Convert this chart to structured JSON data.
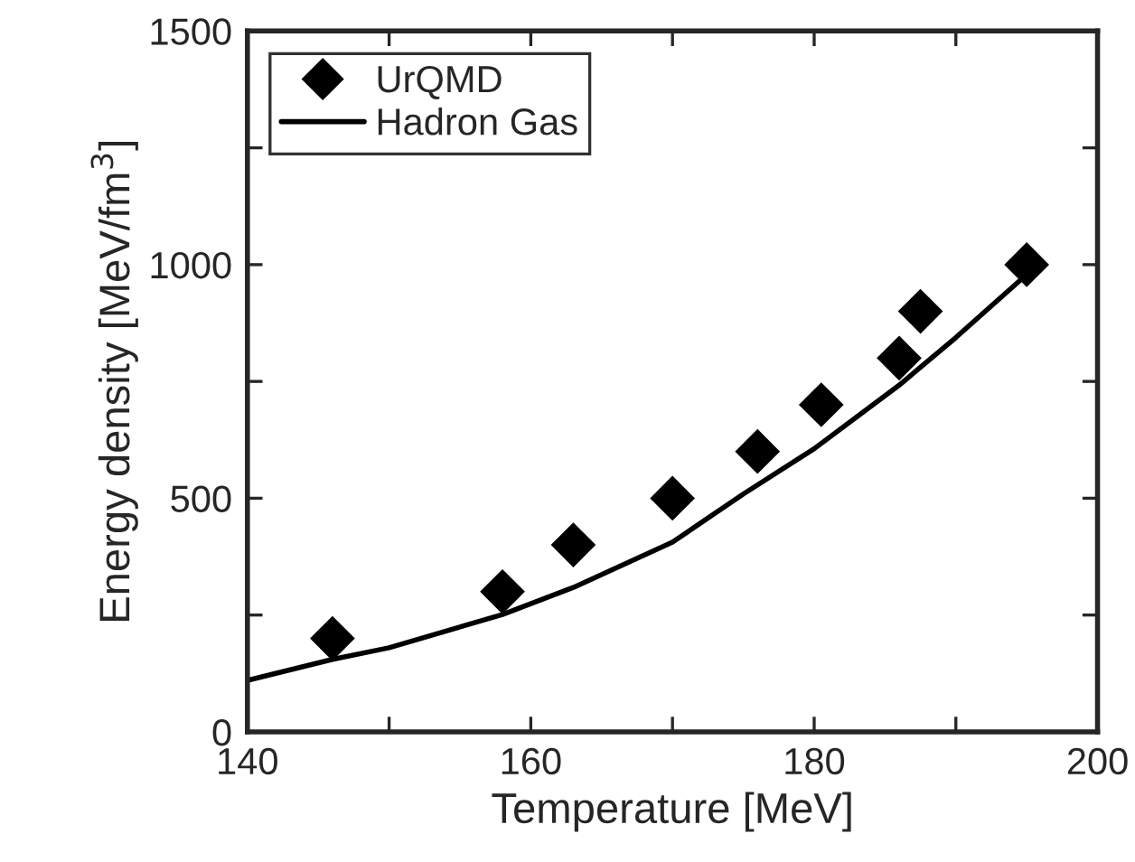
{
  "chart_data": {
    "type": "scatter",
    "xlabel": "Temperature [MeV]",
    "ylabel": "Energy density [MeV/fm$^{3}$]",
    "xlim": [
      140,
      200
    ],
    "ylim": [
      0,
      1500
    ],
    "xticks": [
      140,
      {
        "value": 150,
        "label": null
      },
      160,
      {
        "value": 170,
        "label": null
      },
      180,
      {
        "value": 190,
        "label": null
      },
      200
    ],
    "yticks": [
      0,
      {
        "value": 250,
        "label": null
      },
      500,
      {
        "value": 750,
        "label": null
      },
      1000,
      {
        "value": 1250,
        "label": null
      },
      1500
    ],
    "grid": false,
    "legend": "top left",
    "series": [
      {
        "name": "UrQMD",
        "marker": "diamond",
        "color": "#000000",
        "x": [
          146,
          158,
          163,
          170,
          176,
          180.5,
          186,
          187.5,
          195
        ],
        "values": [
          200,
          300,
          400,
          500,
          600,
          700,
          800,
          900,
          1000
        ]
      },
      {
        "name": "Hadron Gas",
        "type": "line",
        "marker": "none",
        "line_style": "solid",
        "color": "#000000",
        "x": [
          140,
          146,
          150,
          158,
          163,
          170,
          175,
          180,
          186,
          190,
          195
        ],
        "values": [
          110,
          155,
          180,
          251,
          309,
          406,
          509,
          606,
          742,
          844,
          979
        ]
      }
    ]
  }
}
